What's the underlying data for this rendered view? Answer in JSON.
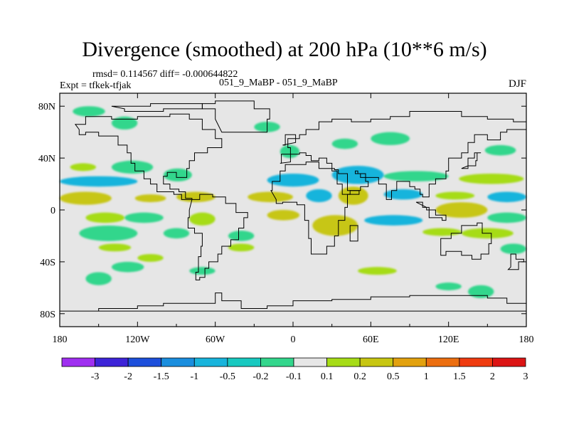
{
  "chart_data": {
    "type": "heatmap",
    "title": "Divergence (smoothed) at 200 hPa (10**6 m/s)",
    "stats_label": "rmsd= 0.114567 diff= -0.000644822",
    "left_label": "Expt = tfkek-tfjak",
    "center_label": "051_9_MaBP - 051_9_MaBP",
    "right_label": "DJF",
    "x_axis": {
      "range": [
        -180,
        180
      ],
      "ticks": [
        {
          "v": -180,
          "label": "180"
        },
        {
          "v": -120,
          "label": "120W"
        },
        {
          "v": -60,
          "label": "60W"
        },
        {
          "v": 0,
          "label": "0"
        },
        {
          "v": 60,
          "label": "60E"
        },
        {
          "v": 120,
          "label": "120E"
        },
        {
          "v": 180,
          "label": "180"
        }
      ]
    },
    "y_axis": {
      "range": [
        -90,
        90
      ],
      "ticks": [
        {
          "v": 80,
          "label": "80N"
        },
        {
          "v": 40,
          "label": "40N"
        },
        {
          "v": 0,
          "label": "0"
        },
        {
          "v": -40,
          "label": "40S"
        },
        {
          "v": -80,
          "label": "80S"
        }
      ]
    },
    "background_color": "#e6e6e6",
    "colorbar": {
      "levels": [
        "-3",
        "-2",
        "-1.5",
        "-1",
        "-0.5",
        "-0.2",
        "-0.1",
        "0.1",
        "0.2",
        "0.5",
        "1",
        "1.5",
        "2",
        "3"
      ],
      "colors": [
        "#9f2ff0",
        "#3d24d8",
        "#1d4fdb",
        "#1a8ede",
        "#18b4dc",
        "#18c9c0",
        "#33d68c",
        "#e6e6e6",
        "#a6dc17",
        "#c7c612",
        "#e2a10e",
        "#ec6e0f",
        "#ef3b10",
        "#dc1414"
      ]
    },
    "features": [
      {
        "lon": [
          -170,
          -145
        ],
        "lat": [
          72,
          80
        ],
        "color": "#33d68c"
      },
      {
        "lon": [
          -140,
          -120
        ],
        "lat": [
          62,
          72
        ],
        "color": "#33d68c"
      },
      {
        "lon": [
          -30,
          -10
        ],
        "lat": [
          60,
          68
        ],
        "color": "#33d68c"
      },
      {
        "lon": [
          -10,
          5
        ],
        "lat": [
          40,
          50
        ],
        "color": "#33d68c"
      },
      {
        "lon": [
          30,
          50
        ],
        "lat": [
          47,
          55
        ],
        "color": "#33d68c"
      },
      {
        "lon": [
          60,
          90
        ],
        "lat": [
          50,
          60
        ],
        "color": "#33d68c"
      },
      {
        "lon": [
          148,
          172
        ],
        "lat": [
          42,
          50
        ],
        "color": "#33d68c"
      },
      {
        "lon": [
          -172,
          -152
        ],
        "lat": [
          30,
          36
        ],
        "color": "#a6dc17"
      },
      {
        "lon": [
          -140,
          -108
        ],
        "lat": [
          28,
          38
        ],
        "color": "#33d68c"
      },
      {
        "lon": [
          -180,
          -120
        ],
        "lat": [
          18,
          26
        ],
        "color": "#18b4dc"
      },
      {
        "lon": [
          -100,
          -78
        ],
        "lat": [
          22,
          32
        ],
        "color": "#33d68c"
      },
      {
        "lon": [
          -20,
          20
        ],
        "lat": [
          18,
          28
        ],
        "color": "#18b4dc"
      },
      {
        "lon": [
          30,
          70
        ],
        "lat": [
          20,
          34
        ],
        "color": "#18b4dc"
      },
      {
        "lon": [
          70,
          120
        ],
        "lat": [
          22,
          30
        ],
        "color": "#33d68c"
      },
      {
        "lon": [
          128,
          178
        ],
        "lat": [
          20,
          28
        ],
        "color": "#a6dc17"
      },
      {
        "lon": [
          -180,
          -140
        ],
        "lat": [
          4,
          14
        ],
        "color": "#c7c612"
      },
      {
        "lon": [
          -122,
          -98
        ],
        "lat": [
          6,
          12
        ],
        "color": "#c7c612"
      },
      {
        "lon": [
          -90,
          -60
        ],
        "lat": [
          6,
          14
        ],
        "color": "#c7c612"
      },
      {
        "lon": [
          -35,
          0
        ],
        "lat": [
          6,
          14
        ],
        "color": "#c7c612"
      },
      {
        "lon": [
          10,
          30
        ],
        "lat": [
          6,
          16
        ],
        "color": "#18b4dc"
      },
      {
        "lon": [
          35,
          58
        ],
        "lat": [
          4,
          18
        ],
        "color": "#c7c612"
      },
      {
        "lon": [
          70,
          100
        ],
        "lat": [
          8,
          16
        ],
        "color": "#18b4dc"
      },
      {
        "lon": [
          110,
          140
        ],
        "lat": [
          8,
          14
        ],
        "color": "#a6dc17"
      },
      {
        "lon": [
          150,
          180
        ],
        "lat": [
          6,
          14
        ],
        "color": "#18b4dc"
      },
      {
        "lon": [
          -160,
          -130
        ],
        "lat": [
          -10,
          -2
        ],
        "color": "#a6dc17"
      },
      {
        "lon": [
          -130,
          -100
        ],
        "lat": [
          -10,
          -2
        ],
        "color": "#33d68c"
      },
      {
        "lon": [
          -80,
          -60
        ],
        "lat": [
          -12,
          -2
        ],
        "color": "#a6dc17"
      },
      {
        "lon": [
          -20,
          5
        ],
        "lat": [
          -8,
          0
        ],
        "color": "#c7c612"
      },
      {
        "lon": [
          15,
          50
        ],
        "lat": [
          -20,
          -4
        ],
        "color": "#c7c612"
      },
      {
        "lon": [
          55,
          100
        ],
        "lat": [
          -12,
          -4
        ],
        "color": "#18b4dc"
      },
      {
        "lon": [
          110,
          150
        ],
        "lat": [
          -6,
          6
        ],
        "color": "#c7c612"
      },
      {
        "lon": [
          150,
          180
        ],
        "lat": [
          -10,
          -2
        ],
        "color": "#33d68c"
      },
      {
        "lon": [
          -165,
          -120
        ],
        "lat": [
          -24,
          -12
        ],
        "color": "#33d68c"
      },
      {
        "lon": [
          -100,
          -80
        ],
        "lat": [
          -22,
          -14
        ],
        "color": "#33d68c"
      },
      {
        "lon": [
          -50,
          -30
        ],
        "lat": [
          -24,
          -16
        ],
        "color": "#33d68c"
      },
      {
        "lon": [
          100,
          130
        ],
        "lat": [
          -20,
          -14
        ],
        "color": "#a6dc17"
      },
      {
        "lon": [
          130,
          170
        ],
        "lat": [
          -22,
          -14
        ],
        "color": "#a6dc17"
      },
      {
        "lon": [
          -150,
          -125
        ],
        "lat": [
          -32,
          -26
        ],
        "color": "#a6dc17"
      },
      {
        "lon": [
          -50,
          -30
        ],
        "lat": [
          -32,
          -26
        ],
        "color": "#a6dc17"
      },
      {
        "lon": [
          160,
          180
        ],
        "lat": [
          -34,
          -26
        ],
        "color": "#33d68c"
      },
      {
        "lon": [
          -140,
          -115
        ],
        "lat": [
          -48,
          -40
        ],
        "color": "#33d68c"
      },
      {
        "lon": [
          -120,
          -100
        ],
        "lat": [
          -40,
          -34
        ],
        "color": "#a6dc17"
      },
      {
        "lon": [
          -160,
          -140
        ],
        "lat": [
          -58,
          -48
        ],
        "color": "#33d68c"
      },
      {
        "lon": [
          -80,
          -60
        ],
        "lat": [
          -50,
          -44
        ],
        "color": "#33d68c"
      },
      {
        "lon": [
          50,
          80
        ],
        "lat": [
          -50,
          -44
        ],
        "color": "#a6dc17"
      },
      {
        "lon": [
          110,
          130
        ],
        "lat": [
          -62,
          -56
        ],
        "color": "#33d68c"
      },
      {
        "lon": [
          135,
          155
        ],
        "lat": [
          -68,
          -58
        ],
        "color": "#33d68c"
      }
    ]
  }
}
